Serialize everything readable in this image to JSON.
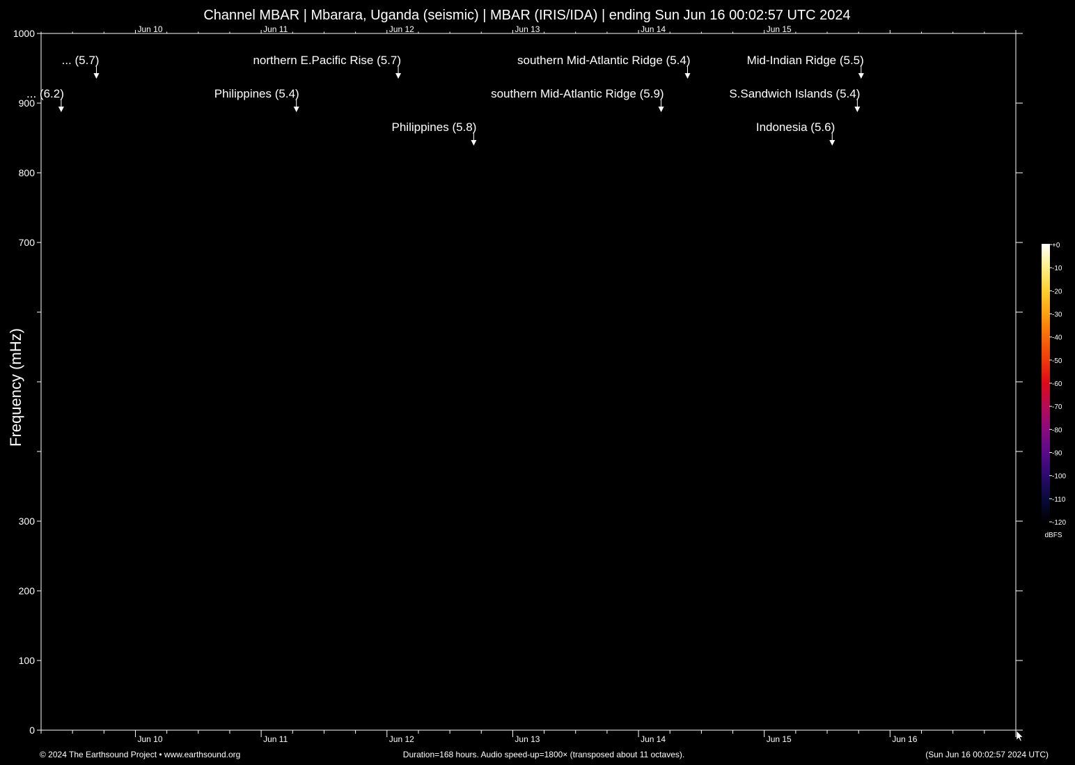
{
  "chart_data": {
    "type": "heatmap",
    "title": "Channel MBAR | Mbarara, Uganda (seismic) | MBAR (IRIS/IDA) | ending Sun Jun 16 00:02:57 UTC 2024",
    "ylabel": "Frequency (mHz)",
    "ylim": [
      0,
      1000
    ],
    "y_tick_labels": [
      "0",
      "100",
      "200",
      "300",
      "",
      "",
      "",
      "700",
      "800",
      "900",
      "1000"
    ],
    "x_tick_labels": [
      "Jun 10",
      "Jun 11",
      "Jun 12",
      "Jun 13",
      "Jun 14",
      "Jun 15",
      "Jun 16"
    ],
    "x_range_days": [
      -0.75,
      7.0
    ],
    "grid": false,
    "events": [
      {
        "label": "... (5.7)",
        "day": -0.31,
        "row": 0
      },
      {
        "label": "... (6.2)",
        "day": -0.59,
        "row": 1
      },
      {
        "label": "northern E.Pacific Rise (5.7)",
        "day": 2.09,
        "row": 0
      },
      {
        "label": "Philippines (5.4)",
        "day": 1.28,
        "row": 1
      },
      {
        "label": "Philippines (5.8)",
        "day": 2.69,
        "row": 2
      },
      {
        "label": "southern Mid-Atlantic Ridge (5.4)",
        "day": 4.39,
        "row": 0
      },
      {
        "label": "southern Mid-Atlantic Ridge (5.9)",
        "day": 4.18,
        "row": 1
      },
      {
        "label": "Mid-Indian Ridge (5.5)",
        "day": 5.77,
        "row": 0
      },
      {
        "label": "S.Sandwich Islands (5.4)",
        "day": 5.74,
        "row": 1
      },
      {
        "label": "Indonesia (5.6)",
        "day": 5.54,
        "row": 2
      }
    ],
    "colorbar": {
      "unit": "dBFS",
      "tick_labels": [
        "+0",
        "-10",
        "-20",
        "-30",
        "-40",
        "-50",
        "-60",
        "-70",
        "-80",
        "-90",
        "-100",
        "-110",
        "-120"
      ],
      "colors": [
        "#000000",
        "#0a0a3a",
        "#2a0a6e",
        "#5a0a8a",
        "#8a0a80",
        "#b80a55",
        "#dc0a18",
        "#f03a0a",
        "#f86a0a",
        "#fca010",
        "#fdd030",
        "#fef08a",
        "#ffffff"
      ]
    }
  },
  "footer": {
    "left": "© 2024 The Earthsound Project • www.earthsound.org",
    "center": "Duration=168 hours. Audio speed-up=1800× (transposed about 11 octaves).",
    "right": "(Sun Jun 16 00:02:57 2024 UTC)"
  }
}
